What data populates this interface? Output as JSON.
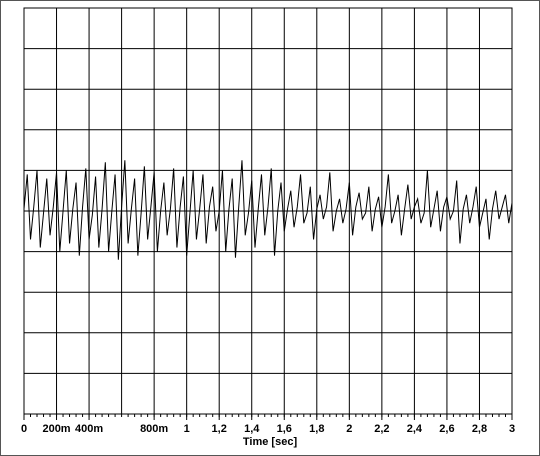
{
  "chart_data": {
    "type": "line",
    "xlabel": "Time [sec]",
    "color": "#000000",
    "grid": true,
    "xlim": [
      0,
      3
    ],
    "ylim": [
      -5,
      5
    ],
    "xticks": [
      0,
      {
        "value": 0.2,
        "label": "200m"
      },
      {
        "value": 0.4,
        "label": "400m"
      },
      {
        "value": 0.8,
        "label": "800m"
      },
      1,
      {
        "value": 1.2,
        "label": "1,2"
      },
      {
        "value": 1.4,
        "label": "1,4"
      },
      {
        "value": 1.6,
        "label": "1,6"
      },
      {
        "value": 1.8,
        "label": "1,8"
      },
      2,
      {
        "value": 2.2,
        "label": "2,2"
      },
      {
        "value": 2.4,
        "label": "2,4"
      },
      {
        "value": 2.6,
        "label": "2,6"
      },
      {
        "value": 2.8,
        "label": "2,8"
      },
      3
    ],
    "x": [
      0,
      0.02,
      0.04,
      0.06,
      0.08,
      0.1,
      0.12,
      0.14,
      0.16,
      0.18,
      0.2,
      0.22,
      0.24,
      0.26,
      0.28,
      0.3,
      0.32,
      0.34,
      0.36,
      0.38,
      0.4,
      0.42,
      0.44,
      0.46,
      0.48,
      0.5,
      0.52,
      0.54,
      0.56,
      0.58,
      0.6,
      0.62,
      0.64,
      0.66,
      0.68,
      0.7,
      0.72,
      0.74,
      0.76,
      0.78,
      0.8,
      0.82,
      0.84,
      0.86,
      0.88,
      0.9,
      0.92,
      0.94,
      0.96,
      0.98,
      1,
      1.02,
      1.04,
      1.06,
      1.08,
      1.1,
      1.12,
      1.14,
      1.16,
      1.18,
      1.2,
      1.22,
      1.24,
      1.26,
      1.28,
      1.3,
      1.32,
      1.34,
      1.36,
      1.38,
      1.4,
      1.42,
      1.44,
      1.46,
      1.48,
      1.5,
      1.52,
      1.54,
      1.56,
      1.58,
      1.6,
      1.62,
      1.64,
      1.66,
      1.68,
      1.7,
      1.72,
      1.74,
      1.76,
      1.78,
      1.8,
      1.82,
      1.84,
      1.86,
      1.88,
      1.9,
      1.92,
      1.94,
      1.96,
      1.98,
      2,
      2.02,
      2.04,
      2.06,
      2.08,
      2.1,
      2.12,
      2.14,
      2.16,
      2.18,
      2.2,
      2.22,
      2.24,
      2.26,
      2.28,
      2.3,
      2.32,
      2.34,
      2.36,
      2.38,
      2.4,
      2.42,
      2.44,
      2.46,
      2.48,
      2.5,
      2.52,
      2.54,
      2.56,
      2.58,
      2.6,
      2.62,
      2.64,
      2.66,
      2.68,
      2.7,
      2.72,
      2.74,
      2.76,
      2.78,
      2.8,
      2.82,
      2.84,
      2.86,
      2.88,
      2.9,
      2.92,
      2.94,
      2.96,
      2.98,
      3
    ],
    "values": [
      0.05,
      0.9,
      -0.7,
      0.1,
      1.0,
      -0.9,
      -0.05,
      0.8,
      -0.6,
      0.1,
      0.95,
      -1.0,
      0,
      1.0,
      -0.8,
      0.05,
      0.7,
      -1.1,
      0.1,
      1.05,
      -0.7,
      -0.1,
      0.85,
      -0.9,
      0.05,
      1.2,
      -1.0,
      0,
      0.9,
      -1.2,
      0.1,
      1.25,
      -0.8,
      0.05,
      0.8,
      -1.1,
      -0.05,
      1.1,
      -0.7,
      0.1,
      0.95,
      -1.0,
      0,
      0.7,
      -0.6,
      0.05,
      1.05,
      -0.9,
      0.1,
      0.85,
      -1.1,
      -0.05,
      1.0,
      -0.7,
      0.05,
      0.9,
      -0.8,
      0.1,
      0.6,
      -0.5,
      0,
      1.0,
      -1.0,
      0.05,
      0.8,
      -1.15,
      0.1,
      1.25,
      -0.6,
      -0.05,
      0.75,
      -0.9,
      0.05,
      0.9,
      -0.6,
      0.1,
      1.05,
      -1.1,
      0,
      0.7,
      -0.5,
      0.05,
      0.5,
      -0.4,
      0.1,
      0.9,
      -0.3,
      -0.05,
      0.6,
      -0.7,
      0.05,
      0.4,
      -0.2,
      0.1,
      0.95,
      -0.5,
      0,
      0.3,
      -0.3,
      0.05,
      0.7,
      -0.6,
      0.1,
      0.45,
      -0.2,
      -0.05,
      0.6,
      -0.5,
      0.05,
      0.35,
      -0.4,
      0.1,
      0.9,
      -0.3,
      0,
      0.4,
      -0.6,
      0.05,
      0.65,
      -0.2,
      0.1,
      0.3,
      -0.3,
      -0.05,
      1.0,
      -0.4,
      0.05,
      0.5,
      -0.5,
      0.1,
      0.35,
      -0.2,
      0,
      0.75,
      -0.8,
      0.05,
      0.4,
      -0.3,
      0.1,
      0.6,
      -0.4,
      -0.05,
      0.3,
      -0.7,
      0.05,
      0.5,
      -0.2,
      0.1,
      0.4,
      -0.3,
      0.2
    ]
  }
}
